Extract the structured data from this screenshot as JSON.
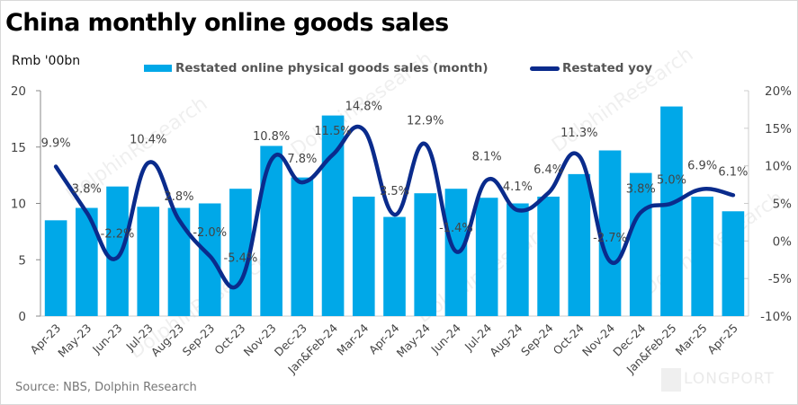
{
  "title": "China monthly online goods sales",
  "unit_label": "Rmb '00bn",
  "source": "Source: NBS, Dolphin Research",
  "watermark": "DolphinResearch",
  "logo": "LONGPORT",
  "colors": {
    "bar": "#00A8E8",
    "line": "#0A2B8C"
  },
  "legend": {
    "bar_label": "Restated online physical goods sales  (month)",
    "line_label": "Restated yoy"
  },
  "chart_data": {
    "type": "bar",
    "title": "China monthly online goods sales",
    "xlabel": "",
    "ylabel": "Rmb '00bn",
    "y2label": "",
    "ylim": [
      0,
      20
    ],
    "y2lim": [
      -10,
      20
    ],
    "yticks": [
      "0",
      "5",
      "10",
      "15",
      "20"
    ],
    "y2ticks": [
      "-10%",
      "-5%",
      "0%",
      "5%",
      "10%",
      "15%",
      "20%"
    ],
    "grid": false,
    "legend_position": "top",
    "categories": [
      "Apr-23",
      "May-23",
      "Jun-23",
      "Jul-23",
      "Aug-23",
      "Sep-23",
      "Oct-23",
      "Nov-23",
      "Dec-23",
      "Jan&Feb-24",
      "Mar-24",
      "Apr-24",
      "May-24",
      "Jun-24",
      "Jul-24",
      "Aug-24",
      "Sep-24",
      "Oct-24",
      "Nov-24",
      "Dec-24",
      "Jan&Feb-25",
      "Mar-25",
      "Apr-25"
    ],
    "series": [
      {
        "name": "Restated online physical goods sales  (month)",
        "type": "bar",
        "axis": "left",
        "values": [
          8.5,
          9.6,
          11.5,
          9.7,
          9.6,
          10.0,
          11.3,
          15.1,
          12.3,
          17.8,
          10.6,
          8.8,
          10.9,
          11.3,
          10.5,
          10.0,
          10.6,
          12.6,
          14.7,
          12.7,
          18.6,
          10.6,
          9.3
        ]
      },
      {
        "name": "Restated yoy",
        "type": "line",
        "axis": "right",
        "values": [
          9.9,
          3.8,
          -2.2,
          10.4,
          2.8,
          -2.0,
          -5.4,
          10.8,
          7.8,
          11.5,
          14.8,
          3.5,
          12.9,
          -1.4,
          8.1,
          4.1,
          6.4,
          11.3,
          -2.7,
          3.8,
          5.0,
          6.9,
          6.1
        ],
        "labels": [
          "9.9%",
          "3.8%",
          "-2.2%",
          "10.4%",
          "2.8%",
          "-2.0%",
          "-5.4%",
          "10.8%",
          "7.8%",
          "11.5%",
          "14.8%",
          "3.5%",
          "12.9%",
          "-1.4%",
          "8.1%",
          "4.1%",
          "6.4%",
          "11.3%",
          "-2.7%",
          "3.8%",
          "5.0%",
          "6.9%",
          "6.1%"
        ]
      }
    ]
  }
}
